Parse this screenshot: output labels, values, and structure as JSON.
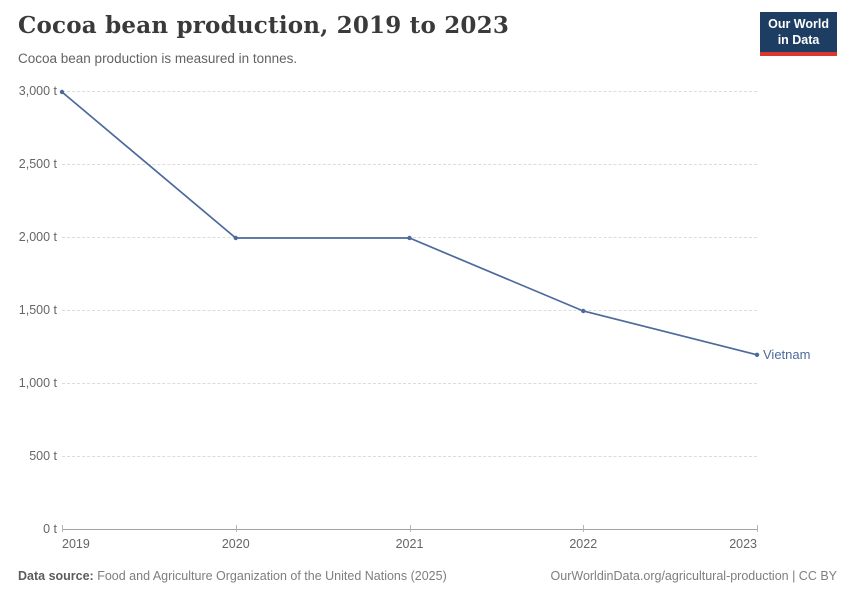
{
  "header": {
    "title": "Cocoa bean production, 2019 to 2023",
    "subtitle": "Cocoa bean production is measured in tonnes.",
    "logo": {
      "line1": "Our World",
      "line2": "in Data"
    }
  },
  "chart_data": {
    "type": "line",
    "title": "Cocoa bean production, 2019 to 2023",
    "unit": "tonnes",
    "x": [
      2019,
      2020,
      2021,
      2022,
      2023
    ],
    "xtick_labels": [
      "2019",
      "2020",
      "2021",
      "2022",
      "2023"
    ],
    "series": [
      {
        "name": "Vietnam",
        "values": [
          3000,
          2000,
          2000,
          1500,
          1200
        ],
        "color": "#4c6a9c"
      }
    ],
    "ylim": [
      0,
      3000
    ],
    "yticks": [
      0,
      500,
      1000,
      1500,
      2000,
      2500,
      3000
    ],
    "ytick_labels": [
      "0 t",
      "500 t",
      "1,000 t",
      "1,500 t",
      "2,000 t",
      "2,500 t",
      "3,000 t"
    ],
    "grid": true,
    "legend_position": "end-of-line"
  },
  "footer": {
    "source_label": "Data source:",
    "source_text": "Food and Agriculture Organization of the United Nations (2025)",
    "credit": "OurWorldinData.org/agricultural-production | CC BY"
  },
  "colors": {
    "series_blue": "#4c6a9c",
    "logo_bg": "#1d3d63",
    "logo_red": "#d8382f",
    "grid": "#dcdcdc",
    "axis": "#a3a3a3",
    "tick_text": "#666666",
    "title_text": "#3a3a3a"
  }
}
